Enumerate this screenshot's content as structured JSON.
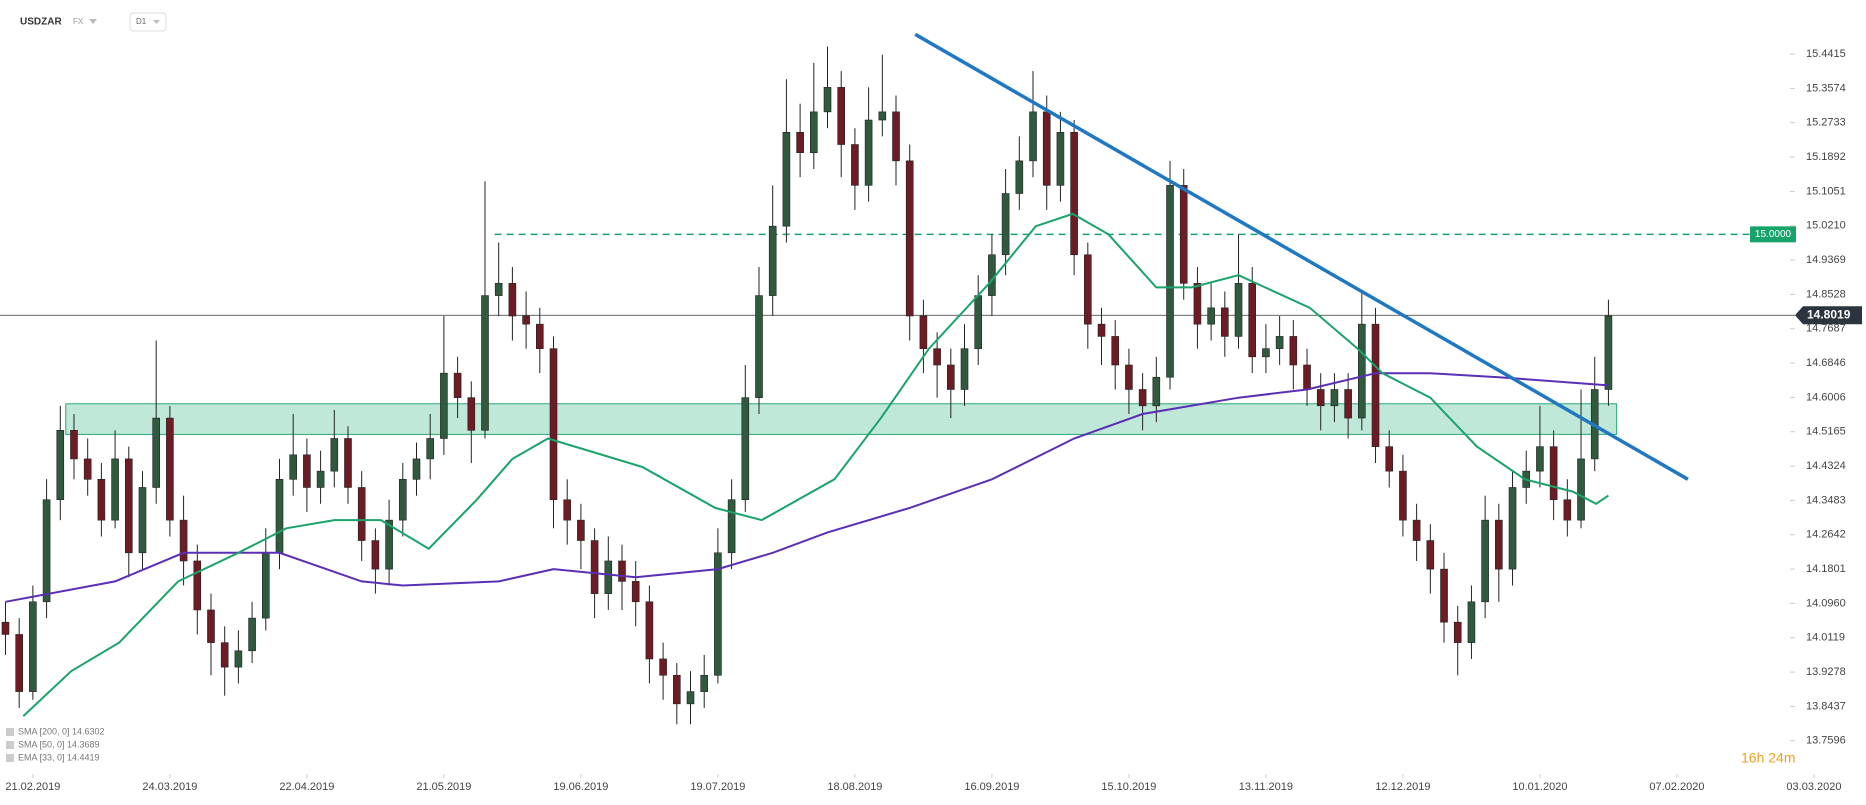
{
  "chart_data": {
    "type": "candlestick",
    "symbol": "USDZAR",
    "market": "FX",
    "interval": "D1",
    "countdown": "16h 24m",
    "ylim": [
      13.688,
      15.574
    ],
    "xlim": [
      -0.4,
      135.8
    ],
    "yticks": [
      15.4415,
      15.3574,
      15.2733,
      15.1892,
      15.1051,
      {
        "value": 15.021,
        "label": "15.0210"
      },
      14.9369,
      14.8528,
      14.7687,
      14.6846,
      14.6006,
      14.5165,
      14.4324,
      14.3483,
      14.2642,
      14.1801,
      {
        "value": 14.096,
        "label": "14.0960"
      },
      14.0119,
      13.9278,
      13.8437,
      13.7596
    ],
    "xticks": [
      {
        "value": 2,
        "label": "21.02.2019"
      },
      {
        "value": 12,
        "label": "24.03.2019"
      },
      {
        "value": 22,
        "label": "22.04.2019"
      },
      {
        "value": 32,
        "label": "21.05.2019"
      },
      {
        "value": 42,
        "label": "19.06.2019"
      },
      {
        "value": 52,
        "label": "19.07.2019"
      },
      {
        "value": 62,
        "label": "18.08.2019"
      },
      {
        "value": 72,
        "label": "16.09.2019"
      },
      {
        "value": 82,
        "label": "15.10.2019"
      },
      {
        "value": 92,
        "label": "13.11.2019"
      },
      {
        "value": 102,
        "label": "12.12.2019"
      },
      {
        "value": 112,
        "label": "10.01.2020"
      },
      {
        "value": 122,
        "label": "07.02.2020"
      },
      {
        "value": 132,
        "label": "03.03.2020"
      }
    ],
    "bull_color": "#2f5a3e",
    "bear_color": "#6e1c24",
    "candles": [
      [
        14.05,
        14.1,
        13.97,
        14.02
      ],
      [
        14.02,
        14.06,
        13.84,
        13.88
      ],
      [
        13.88,
        14.14,
        13.86,
        14.1
      ],
      [
        14.1,
        14.4,
        14.06,
        14.35
      ],
      [
        14.35,
        14.58,
        14.3,
        14.52
      ],
      [
        14.52,
        14.56,
        14.4,
        14.45
      ],
      [
        14.45,
        14.5,
        14.36,
        14.4
      ],
      [
        14.4,
        14.44,
        14.26,
        14.3
      ],
      [
        14.3,
        14.52,
        14.28,
        14.45
      ],
      [
        14.45,
        14.48,
        14.16,
        14.22
      ],
      [
        14.22,
        14.42,
        14.18,
        14.38
      ],
      [
        14.38,
        14.74,
        14.34,
        14.55
      ],
      [
        14.55,
        14.58,
        14.26,
        14.3
      ],
      [
        14.3,
        14.36,
        14.14,
        14.2
      ],
      [
        14.2,
        14.24,
        14.02,
        14.08
      ],
      [
        14.08,
        14.12,
        13.92,
        14.0
      ],
      [
        14.0,
        14.04,
        13.87,
        13.94
      ],
      [
        13.94,
        14.03,
        13.9,
        13.98
      ],
      [
        13.98,
        14.1,
        13.95,
        14.06
      ],
      [
        14.06,
        14.28,
        14.03,
        14.22
      ],
      [
        14.22,
        14.45,
        14.18,
        14.4
      ],
      [
        14.4,
        14.56,
        14.36,
        14.46
      ],
      [
        14.46,
        14.5,
        14.32,
        14.38
      ],
      [
        14.38,
        14.47,
        14.34,
        14.42
      ],
      [
        14.42,
        14.57,
        14.38,
        14.5
      ],
      [
        14.5,
        14.53,
        14.34,
        14.38
      ],
      [
        14.38,
        14.42,
        14.2,
        14.25
      ],
      [
        14.25,
        14.28,
        14.12,
        14.18
      ],
      [
        14.18,
        14.35,
        14.14,
        14.3
      ],
      [
        14.3,
        14.44,
        14.26,
        14.4
      ],
      [
        14.4,
        14.49,
        14.36,
        14.45
      ],
      [
        14.45,
        14.56,
        14.4,
        14.5
      ],
      [
        14.5,
        14.8,
        14.46,
        14.66
      ],
      [
        14.66,
        14.7,
        14.55,
        14.6
      ],
      [
        14.6,
        14.64,
        14.44,
        14.52
      ],
      [
        14.52,
        15.13,
        14.5,
        14.85
      ],
      [
        14.85,
        14.98,
        14.8,
        14.88
      ],
      [
        14.88,
        14.92,
        14.74,
        14.8
      ],
      [
        14.8,
        14.86,
        14.72,
        14.78
      ],
      [
        14.78,
        14.82,
        14.66,
        14.72
      ],
      [
        14.72,
        14.75,
        14.28,
        14.35
      ],
      [
        14.35,
        14.4,
        14.24,
        14.3
      ],
      [
        14.3,
        14.34,
        14.18,
        14.25
      ],
      [
        14.25,
        14.28,
        14.06,
        14.12
      ],
      [
        14.12,
        14.26,
        14.08,
        14.2
      ],
      [
        14.2,
        14.24,
        14.08,
        14.15
      ],
      [
        14.15,
        14.2,
        14.04,
        14.1
      ],
      [
        14.1,
        14.14,
        13.9,
        13.96
      ],
      [
        13.96,
        14.0,
        13.86,
        13.92
      ],
      [
        13.92,
        13.95,
        13.8,
        13.85
      ],
      [
        13.85,
        13.93,
        13.8,
        13.88
      ],
      [
        13.88,
        13.97,
        13.84,
        13.92
      ],
      [
        13.92,
        14.28,
        13.9,
        14.22
      ],
      [
        14.22,
        14.4,
        14.18,
        14.35
      ],
      [
        14.35,
        14.68,
        14.32,
        14.6
      ],
      [
        14.6,
        14.92,
        14.56,
        14.85
      ],
      [
        14.85,
        15.12,
        14.8,
        15.02
      ],
      [
        15.02,
        15.38,
        14.98,
        15.25
      ],
      [
        15.25,
        15.32,
        15.14,
        15.2
      ],
      [
        15.2,
        15.42,
        15.16,
        15.3
      ],
      [
        15.3,
        15.46,
        15.26,
        15.36
      ],
      [
        15.36,
        15.4,
        15.14,
        15.22
      ],
      [
        15.22,
        15.26,
        15.06,
        15.12
      ],
      [
        15.12,
        15.36,
        15.08,
        15.28
      ],
      [
        15.28,
        15.44,
        15.24,
        15.3
      ],
      [
        15.3,
        15.34,
        15.12,
        15.18
      ],
      [
        15.18,
        15.22,
        14.74,
        14.8
      ],
      [
        14.8,
        14.84,
        14.66,
        14.72
      ],
      [
        14.72,
        14.76,
        14.6,
        14.68
      ],
      [
        14.68,
        14.72,
        14.55,
        14.62
      ],
      [
        14.62,
        14.78,
        14.58,
        14.72
      ],
      [
        14.72,
        14.9,
        14.68,
        14.85
      ],
      [
        14.85,
        15.0,
        14.8,
        14.95
      ],
      [
        14.95,
        15.16,
        14.9,
        15.1
      ],
      [
        15.1,
        15.24,
        15.06,
        15.18
      ],
      [
        15.18,
        15.4,
        15.14,
        15.3
      ],
      [
        15.3,
        15.34,
        15.06,
        15.12
      ],
      [
        15.12,
        15.3,
        15.08,
        15.25
      ],
      [
        15.25,
        15.28,
        14.9,
        14.95
      ],
      [
        14.95,
        14.98,
        14.72,
        14.78
      ],
      [
        14.78,
        14.82,
        14.68,
        14.75
      ],
      [
        14.75,
        14.79,
        14.62,
        14.68
      ],
      [
        14.68,
        14.72,
        14.56,
        14.62
      ],
      [
        14.62,
        14.66,
        14.52,
        14.58
      ],
      [
        14.58,
        14.7,
        14.54,
        14.65
      ],
      [
        14.65,
        15.18,
        14.62,
        15.12
      ],
      [
        15.12,
        15.16,
        14.84,
        14.88
      ],
      [
        14.88,
        14.92,
        14.72,
        14.78
      ],
      [
        14.78,
        14.88,
        14.74,
        14.82
      ],
      [
        14.82,
        14.86,
        14.7,
        14.75
      ],
      [
        14.75,
        15.0,
        14.72,
        14.88
      ],
      [
        14.88,
        14.92,
        14.66,
        14.7
      ],
      [
        14.7,
        14.78,
        14.66,
        14.72
      ],
      [
        14.72,
        14.8,
        14.68,
        14.75
      ],
      [
        14.75,
        14.79,
        14.62,
        14.68
      ],
      [
        14.68,
        14.72,
        14.58,
        14.62
      ],
      [
        14.62,
        14.66,
        14.52,
        14.58
      ],
      [
        14.58,
        14.66,
        14.54,
        14.62
      ],
      [
        14.62,
        14.66,
        14.5,
        14.55
      ],
      [
        14.55,
        14.86,
        14.52,
        14.78
      ],
      [
        14.78,
        14.82,
        14.44,
        14.48
      ],
      [
        14.48,
        14.52,
        14.38,
        14.42
      ],
      [
        14.42,
        14.46,
        14.26,
        14.3
      ],
      [
        14.3,
        14.34,
        14.2,
        14.25
      ],
      [
        14.25,
        14.29,
        14.12,
        14.18
      ],
      [
        14.18,
        14.22,
        14.0,
        14.05
      ],
      [
        14.05,
        14.09,
        13.92,
        14.0
      ],
      [
        14.0,
        14.14,
        13.96,
        14.1
      ],
      [
        14.1,
        14.36,
        14.06,
        14.3
      ],
      [
        14.3,
        14.34,
        14.1,
        14.18
      ],
      [
        14.18,
        14.42,
        14.14,
        14.38
      ],
      [
        14.38,
        14.47,
        14.34,
        14.42
      ],
      [
        14.42,
        14.58,
        14.38,
        14.48
      ],
      [
        14.48,
        14.52,
        14.3,
        14.35
      ],
      [
        14.35,
        14.4,
        14.26,
        14.3
      ],
      [
        14.3,
        14.62,
        14.28,
        14.45
      ],
      [
        14.45,
        14.7,
        14.42,
        14.62
      ],
      [
        14.62,
        14.84,
        14.58,
        14.8
      ]
    ],
    "series": [
      {
        "name": "SMA [200, 0] 14.6302",
        "color": "#5b2fb5",
        "x": [
          0,
          8,
          13,
          20,
          26,
          29,
          36,
          40,
          46,
          52,
          56,
          60,
          66,
          72,
          78,
          83,
          90,
          95,
          100,
          104,
          109,
          117
        ],
        "values": [
          14.1,
          14.15,
          14.22,
          14.22,
          14.15,
          14.14,
          14.15,
          14.18,
          14.16,
          14.18,
          14.22,
          14.27,
          14.33,
          14.4,
          14.5,
          14.56,
          14.6,
          14.62,
          14.66,
          14.66,
          14.65,
          14.63
        ]
      },
      {
        "name": "SMA [50, 0] 14.3689",
        "color": "#1aa36a",
        "x": [
          1.3,
          4.8,
          8.3,
          12.6,
          17,
          20.5,
          24,
          27.4,
          30.9,
          34.4,
          37,
          39.6,
          46.5,
          51.8,
          55.2,
          60.5,
          63.9,
          67.4,
          71.8,
          75.2,
          77.9,
          80.5,
          84,
          86.6,
          90,
          95.2,
          98.7,
          100.5,
          104,
          107.4,
          110.9,
          114.4,
          116.1,
          117
        ],
        "values": [
          13.82,
          13.93,
          14.0,
          14.15,
          14.22,
          14.28,
          14.3,
          14.3,
          14.23,
          14.35,
          14.45,
          14.5,
          14.43,
          14.33,
          14.3,
          14.4,
          14.55,
          14.72,
          14.88,
          15.02,
          15.05,
          15.0,
          14.87,
          14.87,
          14.9,
          14.82,
          14.72,
          14.66,
          14.6,
          14.48,
          14.4,
          14.37,
          14.34,
          14.36
        ]
      },
      {
        "name": "EMA [33, 0] 14.4419",
        "color": "#888888",
        "x": [],
        "values": []
      }
    ],
    "support_zone": {
      "low": 14.51,
      "high": 14.585,
      "start": 4.4,
      "end": 117.6,
      "color": "#bfe8d8"
    },
    "trendline": {
      "x": [
        66.4,
        122.8
      ],
      "values": [
        15.49,
        14.4
      ],
      "color": "#1f78c1"
    },
    "level": {
      "value": 15,
      "label": "15.0000",
      "color": "#18a36d"
    },
    "last_price": 14.8019
  }
}
